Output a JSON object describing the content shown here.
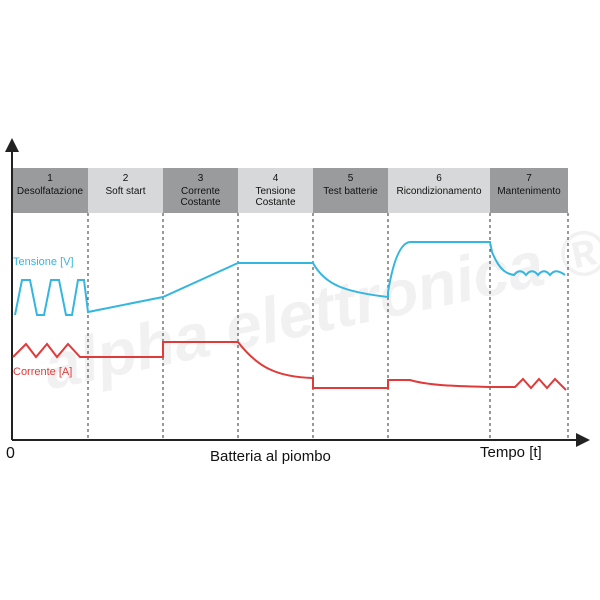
{
  "diagram": {
    "origin_label": "0",
    "x_axis_label": "Tempo [t]",
    "caption": "Batteria al piombo",
    "watermark": "alpha elettronica ®",
    "phases": [
      {
        "number": "1",
        "lines": [
          "Desolfatazione"
        ],
        "shade": "dark"
      },
      {
        "number": "2",
        "lines": [
          "Soft start"
        ],
        "shade": "light"
      },
      {
        "number": "3",
        "lines": [
          "Corrente",
          "Costante"
        ],
        "shade": "dark"
      },
      {
        "number": "4",
        "lines": [
          "Tensione",
          "Costante"
        ],
        "shade": "light"
      },
      {
        "number": "5",
        "lines": [
          "Test batterie"
        ],
        "shade": "dark"
      },
      {
        "number": "6",
        "lines": [
          "Ricondizionamento"
        ],
        "shade": "light"
      },
      {
        "number": "7",
        "lines": [
          "Mantenimento"
        ],
        "shade": "dark"
      }
    ],
    "series": [
      {
        "key": "tensione",
        "label": "Tensione [V]",
        "color": "#35b6e0"
      },
      {
        "key": "corrente",
        "label": "Corrente [A]",
        "color": "#e03a3a"
      }
    ],
    "colors": {
      "header_dark": "#9a9b9d",
      "header_light": "#d7d8d9",
      "axis": "#222222",
      "divider": "#333333"
    }
  }
}
